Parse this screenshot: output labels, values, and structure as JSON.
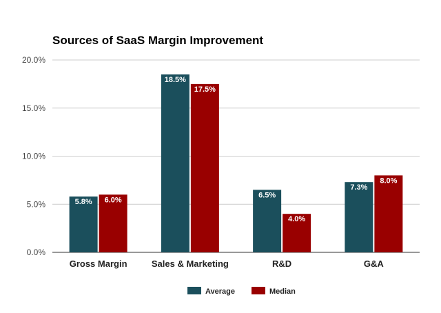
{
  "chart_data": {
    "type": "bar",
    "title": "Sources of SaaS Margin Improvement",
    "xlabel": "",
    "ylabel": "",
    "categories": [
      "Gross Margin",
      "Sales & Marketing",
      "R&D",
      "G&A"
    ],
    "series": [
      {
        "name": "Average",
        "values": [
          5.8,
          18.5,
          6.5,
          7.3
        ],
        "labels": [
          "5.8%",
          "18.5%",
          "6.5%",
          "7.3%"
        ],
        "color": "#1b4f5c"
      },
      {
        "name": "Median",
        "values": [
          6.0,
          17.5,
          4.0,
          8.0
        ],
        "labels": [
          "6.0%",
          "17.5%",
          "4.0%",
          "8.0%"
        ],
        "color": "#990000"
      }
    ],
    "ylim": [
      0,
      20
    ],
    "yticks": [
      0,
      5,
      10,
      15,
      20
    ],
    "ytick_labels": [
      "0.0%",
      "5.0%",
      "10.0%",
      "15.0%",
      "20.0%"
    ],
    "grid": true,
    "legend": "bottom"
  }
}
